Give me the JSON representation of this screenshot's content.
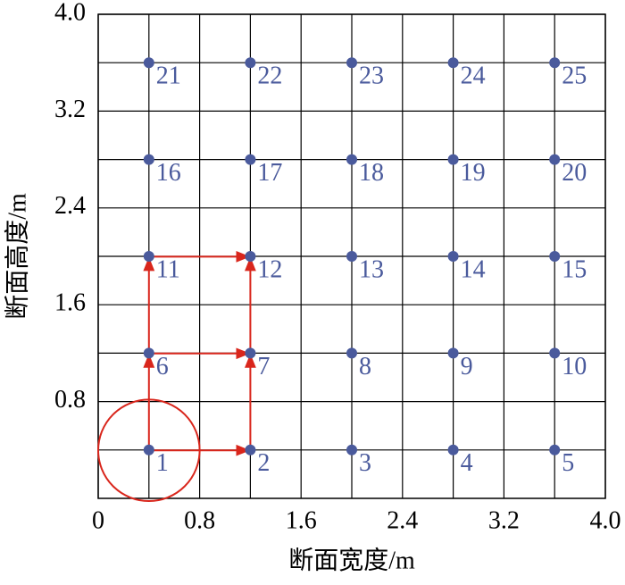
{
  "chart_data": {
    "type": "scatter",
    "xlabel": "断面宽度/m",
    "ylabel": "断面高度/m",
    "x": [
      0.4,
      1.2,
      2.0,
      2.8,
      3.6,
      0.4,
      1.2,
      2.0,
      2.8,
      3.6,
      0.4,
      1.2,
      2.0,
      2.8,
      3.6,
      0.4,
      1.2,
      2.0,
      2.8,
      3.6,
      0.4,
      1.2,
      2.0,
      2.8,
      3.6
    ],
    "y": [
      0.4,
      0.4,
      0.4,
      0.4,
      0.4,
      1.2,
      1.2,
      1.2,
      1.2,
      1.2,
      2.0,
      2.0,
      2.0,
      2.0,
      2.0,
      2.8,
      2.8,
      2.8,
      2.8,
      2.8,
      3.6,
      3.6,
      3.6,
      3.6,
      3.6
    ],
    "point_labels": [
      1,
      2,
      3,
      4,
      5,
      6,
      7,
      8,
      9,
      10,
      11,
      12,
      13,
      14,
      15,
      16,
      17,
      18,
      19,
      20,
      21,
      22,
      23,
      24,
      25
    ],
    "color": "#4a5a9c",
    "xlim": [
      0,
      4
    ],
    "ylim": [
      0,
      4
    ],
    "xticks": [
      0,
      0.8,
      1.6,
      2.4,
      3.2,
      {
        "value": 4,
        "label": "4.0"
      }
    ],
    "yticks": [
      0.8,
      1.6,
      2.4,
      3.2,
      {
        "value": 4,
        "label": "4.0"
      }
    ],
    "x_minor_ticks": [
      0.4,
      1.2,
      2.0,
      2.8,
      3.6
    ],
    "y_minor_ticks": [
      0.4,
      1.2,
      2.0,
      2.8,
      3.6
    ],
    "grid": true
  }
}
